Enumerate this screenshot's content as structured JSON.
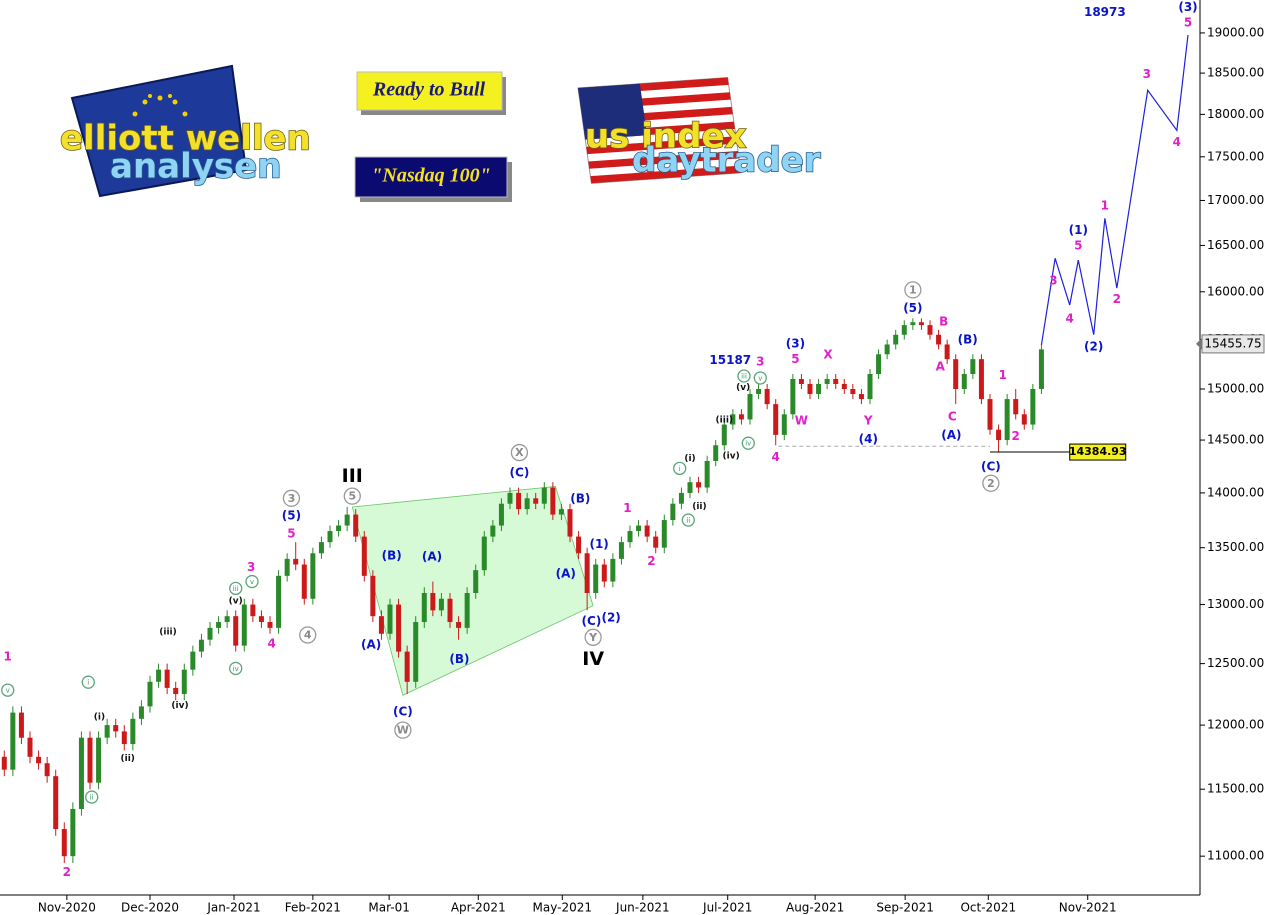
{
  "chart_data": {
    "type": "candlestick",
    "log_scale": true,
    "up_color": "#2a8a2a",
    "down_color": "#cc1a1a",
    "xlim": [
      -0.5,
      139.5
    ],
    "ylim": [
      10720,
      19420
    ],
    "xticks": [
      {
        "value": 7.3,
        "label": "Nov-2020"
      },
      {
        "value": 17,
        "label": "Dec-2020"
      },
      {
        "value": 26.8,
        "label": "Jan-2021"
      },
      {
        "value": 36,
        "label": "Feb-2021"
      },
      {
        "value": 44.9,
        "label": "Mar-01"
      },
      {
        "value": 55.3,
        "label": "Apr-2021"
      },
      {
        "value": 65.1,
        "label": "May-2021"
      },
      {
        "value": 74.5,
        "label": "Jun-2021"
      },
      {
        "value": 84.4,
        "label": "Jul-2021"
      },
      {
        "value": 94.6,
        "label": "Aug-2021"
      },
      {
        "value": 105.1,
        "label": "Sep-2021"
      },
      {
        "value": 114.8,
        "label": "Oct-2021"
      },
      {
        "value": 126.4,
        "label": "Nov-2021"
      }
    ],
    "yticks": [
      {
        "value": 11000,
        "label": "11000.00"
      },
      {
        "value": 11500,
        "label": "11500.00"
      },
      {
        "value": 12000,
        "label": "12000.00"
      },
      {
        "value": 12500,
        "label": "12500.00"
      },
      {
        "value": 13000,
        "label": "13000.00"
      },
      {
        "value": 13500,
        "label": "13500.00"
      },
      {
        "value": 14000,
        "label": "14000.00"
      },
      {
        "value": 14500,
        "label": "14500.00"
      },
      {
        "value": 15000,
        "label": "15000.00"
      },
      {
        "value": 15500,
        "label": "15500.00"
      },
      {
        "value": 16000,
        "label": "16000.00"
      },
      {
        "value": 16500,
        "label": "16500.00"
      },
      {
        "value": 17000,
        "label": "17000.00"
      },
      {
        "value": 17500,
        "label": "17500.00"
      },
      {
        "value": 18000,
        "label": "18000.00"
      },
      {
        "value": 18500,
        "label": "18500.00"
      },
      {
        "value": 19000,
        "label": "19000.00"
      }
    ],
    "open": [
      11750,
      11650,
      12100,
      11900,
      11750,
      11700,
      11600,
      11200,
      11000,
      11350,
      11900,
      11550,
      11900,
      12000,
      11950,
      11850,
      12050,
      12150,
      12350,
      12450,
      12300,
      12250,
      12450,
      12600,
      12700,
      12800,
      12850,
      12900,
      12650,
      13000,
      12900,
      12850,
      12800,
      13250,
      13400,
      13350,
      13050,
      13450,
      13550,
      13650,
      13700,
      13800,
      13600,
      13250,
      12900,
      12750,
      13000,
      12600,
      12350,
      12850,
      13100,
      12950,
      13050,
      12850,
      12800,
      13100,
      13300,
      13600,
      13700,
      13900,
      14000,
      13850,
      13950,
      13900,
      14050,
      13800,
      13850,
      13600,
      13450,
      13100,
      13350,
      13200,
      13400,
      13550,
      13650,
      13700,
      13600,
      13500,
      13750,
      13900,
      14000,
      14100,
      14050,
      14300,
      14450,
      14650,
      14750,
      14700,
      14950,
      15000,
      14850,
      14550,
      14750,
      15100,
      15050,
      14950,
      15050,
      15100,
      15050,
      15000,
      14950,
      14900,
      15150,
      15350,
      15450,
      15550,
      15650,
      15680,
      15650,
      15550,
      15450,
      15300,
      15000,
      15150,
      15300,
      14900,
      14600,
      14500,
      14900,
      14750,
      14650,
      15000
    ],
    "high": [
      11800,
      12150,
      12150,
      11950,
      11800,
      11750,
      11650,
      11250,
      11400,
      11950,
      11950,
      11950,
      12050,
      12050,
      12000,
      12100,
      12200,
      12400,
      12500,
      12500,
      12350,
      12500,
      12650,
      12750,
      12850,
      12900,
      12950,
      12950,
      13050,
      13050,
      12950,
      12900,
      13300,
      13450,
      13550,
      13400,
      13500,
      13600,
      13700,
      13750,
      13870,
      13850,
      13650,
      13300,
      12950,
      13050,
      13050,
      12650,
      12900,
      13150,
      13200,
      13100,
      13100,
      12900,
      13150,
      13350,
      13650,
      13750,
      13950,
      14050,
      14050,
      14000,
      14000,
      14100,
      14100,
      13900,
      13900,
      13650,
      13500,
      13400,
      13400,
      13450,
      13600,
      13700,
      13750,
      13750,
      13650,
      13800,
      13950,
      14050,
      14150,
      14150,
      14350,
      14500,
      14700,
      14800,
      14800,
      15000,
      15050,
      15050,
      14900,
      14800,
      15150,
      15150,
      15100,
      15100,
      15150,
      15150,
      15100,
      15050,
      15000,
      15200,
      15400,
      15500,
      15600,
      15700,
      15720,
      15720,
      15700,
      15600,
      15500,
      15350,
      15200,
      15350,
      15350,
      14950,
      14650,
      14950,
      15000,
      14800,
      15050,
      15450
    ],
    "low": [
      11600,
      11600,
      11850,
      11700,
      11650,
      11550,
      11150,
      10950,
      10950,
      11300,
      11500,
      11500,
      11850,
      11900,
      11800,
      11800,
      12000,
      12100,
      12300,
      12250,
      12200,
      12200,
      12400,
      12550,
      12650,
      12750,
      12800,
      12600,
      12600,
      12850,
      12800,
      12750,
      12750,
      13200,
      13300,
      13000,
      13000,
      13400,
      13500,
      13600,
      13650,
      13550,
      13200,
      12850,
      12700,
      12700,
      12550,
      12250,
      12300,
      12800,
      12900,
      12900,
      12800,
      12700,
      12750,
      13050,
      13250,
      13550,
      13650,
      13850,
      13800,
      13800,
      13850,
      13850,
      13750,
      13750,
      13550,
      13400,
      12950,
      13050,
      13150,
      13150,
      13350,
      13500,
      13600,
      13550,
      13450,
      13450,
      13700,
      13850,
      13950,
      14000,
      14000,
      14250,
      14400,
      14600,
      14650,
      14650,
      14900,
      14800,
      14450,
      14500,
      14700,
      15000,
      14900,
      14900,
      15000,
      15000,
      14950,
      14900,
      14850,
      14850,
      15100,
      15300,
      15400,
      15500,
      15600,
      15600,
      15500,
      15400,
      15250,
      14850,
      14950,
      15100,
      14850,
      14550,
      14385,
      14450,
      14700,
      14600,
      14600,
      14950
    ],
    "close": [
      11650,
      12100,
      11900,
      11750,
      11700,
      11600,
      11200,
      11000,
      11350,
      11900,
      11550,
      11900,
      12000,
      11950,
      11850,
      12050,
      12150,
      12350,
      12450,
      12300,
      12250,
      12450,
      12600,
      12700,
      12800,
      12850,
      12900,
      12650,
      13000,
      12900,
      12850,
      12800,
      13250,
      13400,
      13350,
      13050,
      13450,
      13550,
      13650,
      13700,
      13800,
      13600,
      13250,
      12900,
      12750,
      13000,
      12600,
      12350,
      12850,
      13100,
      12950,
      13050,
      12850,
      12800,
      13100,
      13300,
      13600,
      13700,
      13900,
      14000,
      13850,
      13950,
      13900,
      14050,
      13800,
      13850,
      13600,
      13450,
      13100,
      13350,
      13200,
      13400,
      13550,
      13650,
      13700,
      13600,
      13500,
      13750,
      13900,
      14000,
      14100,
      14050,
      14300,
      14450,
      14650,
      14750,
      14700,
      14950,
      15000,
      14850,
      14550,
      14750,
      15100,
      15050,
      14950,
      15050,
      15100,
      15050,
      15000,
      14950,
      14900,
      15150,
      15350,
      15450,
      15550,
      15650,
      15680,
      15650,
      15550,
      15450,
      15300,
      15000,
      15150,
      15300,
      14900,
      14600,
      14500,
      14900,
      14750,
      14650,
      15000,
      15400
    ],
    "forecast": {
      "color": "#2020dd",
      "x": [
        121,
        122.6,
        124.3,
        125.3,
        127.1,
        128.4,
        129.8,
        133.4,
        136.8,
        138.1
      ],
      "prices": [
        15445,
        16360,
        15860,
        16340,
        15550,
        16800,
        16040,
        18290,
        17810,
        18973
      ]
    },
    "wedge": {
      "x": [
        40.6,
        64.3,
        68.7,
        46.5
      ],
      "prices": [
        13870,
        14060,
        12990,
        12240
      ]
    },
    "reference_line": {
      "price": 14440,
      "x": [
        90.3,
        115
      ]
    },
    "support": {
      "price": 14384.93,
      "x": [
        115,
        124.3
      ]
    },
    "last_price": 15455.75,
    "annotations": [
      {
        "text": "1",
        "x": 0.4,
        "price": 12560,
        "style": "magenta"
      },
      {
        "text": "2",
        "x": 7.3,
        "price": 10884,
        "style": "magenta"
      },
      {
        "text": "v",
        "x": 0.4,
        "price": 12282,
        "style": "roman"
      },
      {
        "text": "i",
        "x": 9.8,
        "price": 12347,
        "style": "roman"
      },
      {
        "text": "ii",
        "x": 10.2,
        "price": 11440,
        "style": "roman"
      },
      {
        "text": "(i)",
        "x": 11.1,
        "price": 12070,
        "style": "black"
      },
      {
        "text": "(ii)",
        "x": 14.4,
        "price": 11740,
        "style": "black"
      },
      {
        "text": "(iii)",
        "x": 19.1,
        "price": 12770,
        "style": "black"
      },
      {
        "text": "(iv)",
        "x": 20.5,
        "price": 12160,
        "style": "black"
      },
      {
        "text": "iii",
        "x": 27.0,
        "price": 13140,
        "style": "roman"
      },
      {
        "text": "v",
        "x": 28.9,
        "price": 13200,
        "style": "roman"
      },
      {
        "text": "(v)",
        "x": 27.0,
        "price": 13035,
        "style": "black"
      },
      {
        "text": "iv",
        "x": 27.0,
        "price": 12460,
        "style": "roman"
      },
      {
        "text": "3",
        "x": 28.8,
        "price": 13330,
        "style": "magenta"
      },
      {
        "text": "4",
        "x": 31.2,
        "price": 12670,
        "style": "magenta"
      },
      {
        "text": "3",
        "x": 33.5,
        "price": 13950,
        "style": "circle"
      },
      {
        "text": "(5)",
        "x": 33.5,
        "price": 13790,
        "style": "blue"
      },
      {
        "text": "5",
        "x": 33.5,
        "price": 13630,
        "style": "magenta"
      },
      {
        "text": "4",
        "x": 35.4,
        "price": 12740,
        "style": "circle"
      },
      {
        "text": "III",
        "x": 40.6,
        "price": 14160,
        "style": "big"
      },
      {
        "text": "5",
        "x": 40.6,
        "price": 13970,
        "style": "circle"
      },
      {
        "text": "(B)",
        "x": 45.2,
        "price": 13430,
        "style": "blue"
      },
      {
        "text": "(A)",
        "x": 49.9,
        "price": 13420,
        "style": "blue"
      },
      {
        "text": "(A)",
        "x": 42.8,
        "price": 12660,
        "style": "blue"
      },
      {
        "text": "(B)",
        "x": 53.1,
        "price": 12540,
        "style": "blue"
      },
      {
        "text": "(C)",
        "x": 46.5,
        "price": 12110,
        "style": "blue"
      },
      {
        "text": "W",
        "x": 46.5,
        "price": 11960,
        "style": "circle"
      },
      {
        "text": "X",
        "x": 60.1,
        "price": 14380,
        "style": "circle"
      },
      {
        "text": "(C)",
        "x": 60.1,
        "price": 14190,
        "style": "blue"
      },
      {
        "text": "(B)",
        "x": 67.2,
        "price": 13950,
        "style": "blue"
      },
      {
        "text": "(A)",
        "x": 65.5,
        "price": 13270,
        "style": "blue"
      },
      {
        "text": "(1)",
        "x": 69.4,
        "price": 13535,
        "style": "blue"
      },
      {
        "text": "(C)",
        "x": 68.5,
        "price": 12860,
        "style": "blue"
      },
      {
        "text": "(2)",
        "x": 70.8,
        "price": 12890,
        "style": "blue"
      },
      {
        "text": "Y",
        "x": 68.7,
        "price": 12720,
        "style": "circle"
      },
      {
        "text": "IV",
        "x": 68.7,
        "price": 12540,
        "style": "big"
      },
      {
        "text": "1",
        "x": 72.7,
        "price": 13860,
        "style": "magenta"
      },
      {
        "text": "2",
        "x": 75.5,
        "price": 13380,
        "style": "magenta"
      },
      {
        "text": "i",
        "x": 78.8,
        "price": 14230,
        "style": "roman"
      },
      {
        "text": "(i)",
        "x": 80.0,
        "price": 14330,
        "style": "black"
      },
      {
        "text": "ii",
        "x": 79.8,
        "price": 13750,
        "style": "roman"
      },
      {
        "text": "(ii)",
        "x": 81.1,
        "price": 13880,
        "style": "black"
      },
      {
        "text": "(iii)",
        "x": 84.0,
        "price": 14700,
        "style": "black"
      },
      {
        "text": "(iv)",
        "x": 84.8,
        "price": 14350,
        "style": "black"
      },
      {
        "text": "iv",
        "x": 86.8,
        "price": 14470,
        "style": "roman"
      },
      {
        "text": "(v)",
        "x": 86.2,
        "price": 15020,
        "style": "black"
      },
      {
        "text": "iii",
        "x": 86.3,
        "price": 15130,
        "style": "roman"
      },
      {
        "text": "v",
        "x": 88.2,
        "price": 15110,
        "style": "roman"
      },
      {
        "text": "15187",
        "x": 84.7,
        "price": 15290,
        "style": "blue"
      },
      {
        "text": "3",
        "x": 88.2,
        "price": 15275,
        "style": "magenta"
      },
      {
        "text": "4",
        "x": 90.0,
        "price": 14340,
        "style": "magenta"
      },
      {
        "text": "(3)",
        "x": 92.3,
        "price": 15460,
        "style": "blue"
      },
      {
        "text": "5",
        "x": 92.3,
        "price": 15300,
        "style": "magenta"
      },
      {
        "text": "W",
        "x": 93.0,
        "price": 14690,
        "style": "magenta"
      },
      {
        "text": "X",
        "x": 96.1,
        "price": 15350,
        "style": "magenta"
      },
      {
        "text": "Y",
        "x": 100.8,
        "price": 14690,
        "style": "magenta"
      },
      {
        "text": "(4)",
        "x": 100.8,
        "price": 14510,
        "style": "blue"
      },
      {
        "text": "1",
        "x": 106.0,
        "price": 16020,
        "style": "circle"
      },
      {
        "text": "(5)",
        "x": 106.0,
        "price": 15830,
        "style": "blue"
      },
      {
        "text": "B",
        "x": 109.6,
        "price": 15690,
        "style": "magenta"
      },
      {
        "text": "A",
        "x": 109.2,
        "price": 15225,
        "style": "magenta"
      },
      {
        "text": "(B)",
        "x": 112.4,
        "price": 15500,
        "style": "blue"
      },
      {
        "text": "C",
        "x": 110.6,
        "price": 14730,
        "style": "magenta"
      },
      {
        "text": "(A)",
        "x": 110.5,
        "price": 14550,
        "style": "blue"
      },
      {
        "text": "1",
        "x": 116.5,
        "price": 15140,
        "style": "magenta"
      },
      {
        "text": "2",
        "x": 118.0,
        "price": 14540,
        "style": "magenta"
      },
      {
        "text": "(C)",
        "x": 115.1,
        "price": 14250,
        "style": "blue"
      },
      {
        "text": "2",
        "x": 115.1,
        "price": 14090,
        "style": "circle"
      },
      {
        "text": "3",
        "x": 122.4,
        "price": 16120,
        "style": "magenta"
      },
      {
        "text": "4",
        "x": 124.3,
        "price": 15720,
        "style": "magenta"
      },
      {
        "text": "(1)",
        "x": 125.3,
        "price": 16670,
        "style": "blue"
      },
      {
        "text": "5",
        "x": 125.3,
        "price": 16500,
        "style": "magenta"
      },
      {
        "text": "(2)",
        "x": 127.1,
        "price": 15430,
        "style": "blue"
      },
      {
        "text": "1",
        "x": 128.4,
        "price": 16945,
        "style": "magenta"
      },
      {
        "text": "2",
        "x": 129.8,
        "price": 15925,
        "style": "magenta"
      },
      {
        "text": "3",
        "x": 133.3,
        "price": 18490,
        "style": "magenta"
      },
      {
        "text": "4",
        "x": 136.8,
        "price": 17670,
        "style": "magenta"
      },
      {
        "text": "(3)",
        "x": 138.1,
        "price": 19330,
        "style": "blue"
      },
      {
        "text": "5",
        "x": 138.1,
        "price": 19130,
        "style": "magenta"
      },
      {
        "text": "18973",
        "x": 128.4,
        "price": 19265,
        "style": "blue"
      }
    ],
    "badges": [
      "Ready to Bull",
      "\"Nasdaq 100\""
    ],
    "logo_left": {
      "top": "elliott wellen",
      "bottom": "analysen"
    },
    "logo_right": {
      "top": "us index",
      "bottom": "daytrader"
    }
  }
}
